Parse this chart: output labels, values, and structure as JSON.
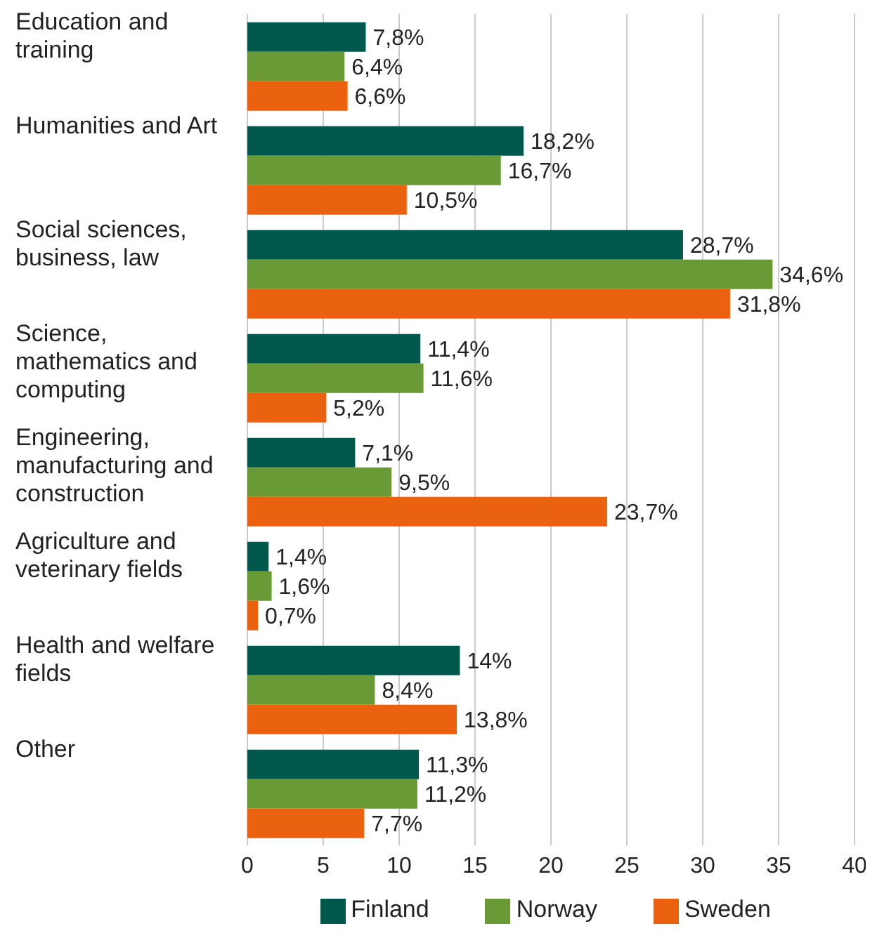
{
  "chart_data": {
    "type": "bar",
    "orientation": "horizontal",
    "categories": [
      "Education and training",
      "Humanities and Art",
      "Social sciences, business, law",
      "Science, mathematics and computing",
      "Engineering, manufacturing and construction",
      "Agriculture and veterinary fields",
      "Health and welfare fields",
      "Other"
    ],
    "series": [
      {
        "name": "Finland",
        "color": "#00574b",
        "values": [
          7.8,
          18.2,
          28.7,
          11.4,
          7.1,
          1.4,
          14,
          11.3
        ],
        "value_labels": [
          "7,8%",
          "18,2%",
          "28,7%",
          "11,4%",
          "7,1%",
          "1,4%",
          "14%",
          "11,3%"
        ]
      },
      {
        "name": "Norway",
        "color": "#6a9a35",
        "values": [
          6.4,
          16.7,
          34.6,
          11.6,
          9.5,
          1.6,
          8.4,
          11.2
        ],
        "value_labels": [
          "6,4%",
          "16,7%",
          "34,6%",
          "11,6%",
          "9,5%",
          "1,6%",
          "8,4%",
          "11,2%"
        ]
      },
      {
        "name": "Sweden",
        "color": "#ea6210",
        "values": [
          6.6,
          10.5,
          31.8,
          5.2,
          23.7,
          0.7,
          13.8,
          7.7
        ],
        "value_labels": [
          "6,6%",
          "10,5%",
          "31,8%",
          "5,2%",
          "23,7%",
          "0,7%",
          "13,8%",
          "7,7%"
        ]
      }
    ],
    "xlim": [
      0,
      40
    ],
    "xticks": [
      0,
      5,
      10,
      15,
      20,
      25,
      30,
      35,
      40
    ],
    "grid": "x",
    "legend": "bottom"
  }
}
